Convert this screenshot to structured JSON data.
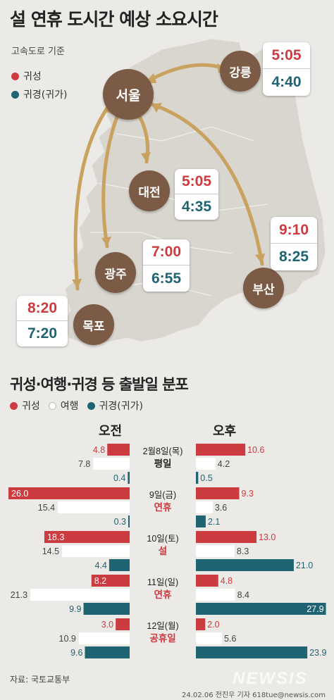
{
  "title": "설 연휴 도시간 예상 소요시간",
  "subtitle": "고속도로 기준",
  "legend_top": {
    "homebound": "귀성",
    "return": "귀경(귀가)"
  },
  "routes": [
    {
      "city": "강릉",
      "homebound": "5:05",
      "return": "4:40"
    },
    {
      "city": "대전",
      "homebound": "5:05",
      "return": "4:35"
    },
    {
      "city": "광주",
      "homebound": "7:00",
      "return": "6:55"
    },
    {
      "city": "부산",
      "homebound": "9:10",
      "return": "8:25"
    },
    {
      "city": "목포",
      "homebound": "8:20",
      "return": "7:20"
    }
  ],
  "origin_city": "서울",
  "section2_title": "귀성·여행·귀경 등 출발일 분포",
  "legend_bottom": {
    "homebound": "귀성",
    "travel": "여행",
    "return": "귀경(귀가)"
  },
  "am_label": "오전",
  "pm_label": "오후",
  "colors": {
    "homebound": "#cc3b3f",
    "travel": "#ffffff",
    "return": "#1f6472",
    "city": "#7b5b45",
    "arrow": "#c9a25f"
  },
  "chart_data": {
    "type": "bar",
    "categories": [
      {
        "date": "2월8일(목)",
        "tag": "평일"
      },
      {
        "date": "9일(금)",
        "tag": "연휴"
      },
      {
        "date": "10일(토)",
        "tag": "설"
      },
      {
        "date": "11일(일)",
        "tag": "연휴"
      },
      {
        "date": "12일(월)",
        "tag": "공휴일"
      }
    ],
    "am": {
      "series": [
        {
          "name": "귀성",
          "values": [
            4.8,
            26.0,
            18.3,
            8.2,
            3.0
          ]
        },
        {
          "name": "여행",
          "values": [
            7.8,
            15.4,
            14.5,
            21.3,
            10.9
          ]
        },
        {
          "name": "귀경(귀가)",
          "values": [
            0.4,
            0.3,
            4.4,
            9.9,
            9.6
          ]
        }
      ]
    },
    "pm": {
      "series": [
        {
          "name": "귀성",
          "values": [
            10.6,
            9.3,
            13.0,
            4.8,
            2.0
          ]
        },
        {
          "name": "여행",
          "values": [
            4.2,
            3.6,
            8.3,
            8.4,
            5.6
          ]
        },
        {
          "name": "귀경(귀가)",
          "values": [
            0.5,
            2.1,
            21.0,
            27.9,
            23.9
          ]
        }
      ]
    },
    "am_labels": {
      "series": [
        [
          "4.8",
          "26.0",
          "18.3",
          "8.2",
          "3.0"
        ],
        [
          "7.8",
          "15.4",
          "14.5",
          "21.3",
          "10.9"
        ],
        [
          "0.4",
          "0.3",
          "4.4",
          "9.9",
          "9.6"
        ]
      ]
    },
    "pm_labels": {
      "series": [
        [
          "10.6",
          "9.3",
          "13.0",
          "4.8",
          "2.0"
        ],
        [
          "4.2",
          "3.6",
          "8.3",
          "8.4",
          "5.6"
        ],
        [
          "0.5",
          "2.1",
          "21.0",
          "27.9",
          "23.9"
        ]
      ]
    }
  },
  "source": "자료: 국토교통부",
  "credit": "24.02.06  전진우 기자  618tue@newsis.com",
  "watermark": "NEWSIS"
}
